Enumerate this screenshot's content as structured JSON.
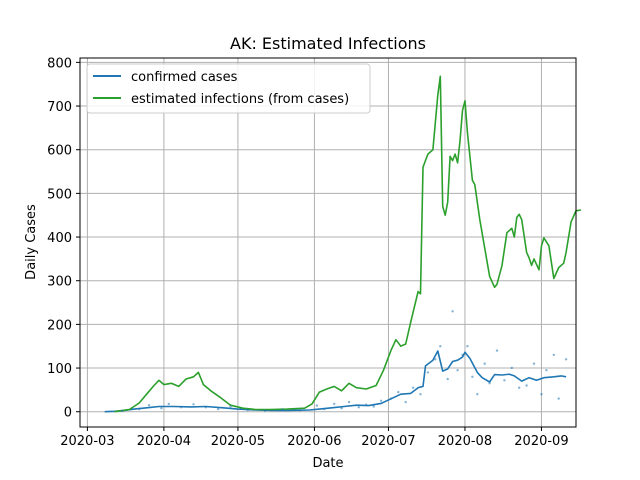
{
  "chart_data": {
    "type": "line",
    "title": "AK: Estimated Infections",
    "xlabel": "Date",
    "ylabel": "Daily Cases",
    "xlim": [
      "2020-02-27",
      "2020-09-15"
    ],
    "ylim": [
      -35,
      810
    ],
    "grid": true,
    "legend_position": "top-left",
    "x_ticks": [
      "2020-03-01",
      "2020-04-01",
      "2020-05-01",
      "2020-06-01",
      "2020-07-01",
      "2020-08-01",
      "2020-09-01"
    ],
    "x_tick_labels": [
      "2020-03",
      "2020-04",
      "2020-05",
      "2020-06",
      "2020-07",
      "2020-08",
      "2020-09"
    ],
    "y_ticks": [
      0,
      100,
      200,
      300,
      400,
      500,
      600,
      700,
      800
    ],
    "series": [
      {
        "name": "confirmed cases",
        "color": "#1f77b4",
        "style": "line",
        "points": [
          [
            "2020-03-08",
            0
          ],
          [
            "2020-03-12",
            1
          ],
          [
            "2020-03-16",
            3
          ],
          [
            "2020-03-20",
            6
          ],
          [
            "2020-03-25",
            9
          ],
          [
            "2020-03-30",
            12
          ],
          [
            "2020-04-05",
            12
          ],
          [
            "2020-04-12",
            11
          ],
          [
            "2020-04-18",
            12
          ],
          [
            "2020-04-25",
            9
          ],
          [
            "2020-05-01",
            6
          ],
          [
            "2020-05-08",
            4
          ],
          [
            "2020-05-15",
            3
          ],
          [
            "2020-05-22",
            3
          ],
          [
            "2020-05-30",
            4
          ],
          [
            "2020-06-03",
            6
          ],
          [
            "2020-06-08",
            9
          ],
          [
            "2020-06-13",
            12
          ],
          [
            "2020-06-18",
            15
          ],
          [
            "2020-06-23",
            14
          ],
          [
            "2020-06-28",
            19
          ],
          [
            "2020-07-03",
            32
          ],
          [
            "2020-07-06",
            40
          ],
          [
            "2020-07-10",
            42
          ],
          [
            "2020-07-13",
            55
          ],
          [
            "2020-07-15",
            58
          ],
          [
            "2020-07-16",
            105
          ],
          [
            "2020-07-19",
            118
          ],
          [
            "2020-07-21",
            139
          ],
          [
            "2020-07-23",
            93
          ],
          [
            "2020-07-25",
            98
          ],
          [
            "2020-07-27",
            115
          ],
          [
            "2020-07-29",
            118
          ],
          [
            "2020-07-31",
            125
          ],
          [
            "2020-08-01",
            136
          ],
          [
            "2020-08-03",
            122
          ],
          [
            "2020-08-06",
            90
          ],
          [
            "2020-08-08",
            78
          ],
          [
            "2020-08-11",
            68
          ],
          [
            "2020-08-13",
            85
          ],
          [
            "2020-08-16",
            84
          ],
          [
            "2020-08-19",
            86
          ],
          [
            "2020-08-21",
            82
          ],
          [
            "2020-08-24",
            70
          ],
          [
            "2020-08-27",
            78
          ],
          [
            "2020-08-30",
            72
          ],
          [
            "2020-09-02",
            78
          ],
          [
            "2020-09-06",
            80
          ],
          [
            "2020-09-09",
            82
          ],
          [
            "2020-09-11",
            80
          ]
        ]
      },
      {
        "name": "estimated infections (from cases)",
        "color": "#2ca02c",
        "style": "line",
        "points": [
          [
            "2020-03-12",
            0
          ],
          [
            "2020-03-18",
            5
          ],
          [
            "2020-03-22",
            20
          ],
          [
            "2020-03-25",
            40
          ],
          [
            "2020-03-28",
            60
          ],
          [
            "2020-03-30",
            72
          ],
          [
            "2020-04-01",
            62
          ],
          [
            "2020-04-04",
            65
          ],
          [
            "2020-04-07",
            58
          ],
          [
            "2020-04-10",
            75
          ],
          [
            "2020-04-13",
            80
          ],
          [
            "2020-04-15",
            90
          ],
          [
            "2020-04-17",
            62
          ],
          [
            "2020-04-20",
            48
          ],
          [
            "2020-04-24",
            32
          ],
          [
            "2020-04-28",
            15
          ],
          [
            "2020-05-03",
            8
          ],
          [
            "2020-05-08",
            5
          ],
          [
            "2020-05-14",
            5
          ],
          [
            "2020-05-21",
            6
          ],
          [
            "2020-05-28",
            8
          ],
          [
            "2020-05-31",
            18
          ],
          [
            "2020-06-03",
            45
          ],
          [
            "2020-06-06",
            52
          ],
          [
            "2020-06-09",
            58
          ],
          [
            "2020-06-12",
            48
          ],
          [
            "2020-06-15",
            65
          ],
          [
            "2020-06-18",
            55
          ],
          [
            "2020-06-22",
            52
          ],
          [
            "2020-06-26",
            60
          ],
          [
            "2020-06-29",
            95
          ],
          [
            "2020-07-02",
            140
          ],
          [
            "2020-07-04",
            165
          ],
          [
            "2020-07-06",
            150
          ],
          [
            "2020-07-08",
            155
          ],
          [
            "2020-07-10",
            205
          ],
          [
            "2020-07-13",
            275
          ],
          [
            "2020-07-14",
            270
          ],
          [
            "2020-07-15",
            560
          ],
          [
            "2020-07-17",
            590
          ],
          [
            "2020-07-19",
            600
          ],
          [
            "2020-07-21",
            725
          ],
          [
            "2020-07-22",
            768
          ],
          [
            "2020-07-23",
            470
          ],
          [
            "2020-07-24",
            450
          ],
          [
            "2020-07-25",
            480
          ],
          [
            "2020-07-26",
            585
          ],
          [
            "2020-07-27",
            575
          ],
          [
            "2020-07-28",
            590
          ],
          [
            "2020-07-29",
            570
          ],
          [
            "2020-07-30",
            620
          ],
          [
            "2020-07-31",
            690
          ],
          [
            "2020-08-01",
            712
          ],
          [
            "2020-08-02",
            640
          ],
          [
            "2020-08-04",
            530
          ],
          [
            "2020-08-05",
            520
          ],
          [
            "2020-08-07",
            440
          ],
          [
            "2020-08-09",
            375
          ],
          [
            "2020-08-11",
            310
          ],
          [
            "2020-08-13",
            285
          ],
          [
            "2020-08-14",
            292
          ],
          [
            "2020-08-16",
            335
          ],
          [
            "2020-08-18",
            410
          ],
          [
            "2020-08-20",
            420
          ],
          [
            "2020-08-21",
            400
          ],
          [
            "2020-08-22",
            445
          ],
          [
            "2020-08-23",
            452
          ],
          [
            "2020-08-24",
            440
          ],
          [
            "2020-08-26",
            365
          ],
          [
            "2020-08-27",
            352
          ],
          [
            "2020-08-28",
            335
          ],
          [
            "2020-08-29",
            350
          ],
          [
            "2020-08-31",
            325
          ],
          [
            "2020-09-01",
            380
          ],
          [
            "2020-09-02",
            398
          ],
          [
            "2020-09-04",
            380
          ],
          [
            "2020-09-06",
            305
          ],
          [
            "2020-09-08",
            330
          ],
          [
            "2020-09-10",
            340
          ],
          [
            "2020-09-11",
            365
          ],
          [
            "2020-09-13",
            435
          ],
          [
            "2020-09-15",
            460
          ],
          [
            "2020-09-17",
            462
          ]
        ]
      },
      {
        "name": "",
        "color": "#1f77b4",
        "style": "scatter",
        "points": [
          [
            "2020-03-15",
            2
          ],
          [
            "2020-03-22",
            6
          ],
          [
            "2020-03-26",
            15
          ],
          [
            "2020-03-31",
            8
          ],
          [
            "2020-04-03",
            18
          ],
          [
            "2020-04-08",
            10
          ],
          [
            "2020-04-13",
            17
          ],
          [
            "2020-04-18",
            10
          ],
          [
            "2020-04-23",
            6
          ],
          [
            "2020-04-28",
            12
          ],
          [
            "2020-05-05",
            4
          ],
          [
            "2020-05-12",
            2
          ],
          [
            "2020-05-19",
            5
          ],
          [
            "2020-05-26",
            3
          ],
          [
            "2020-06-02",
            14
          ],
          [
            "2020-06-05",
            6
          ],
          [
            "2020-06-09",
            18
          ],
          [
            "2020-06-12",
            8
          ],
          [
            "2020-06-15",
            22
          ],
          [
            "2020-06-19",
            10
          ],
          [
            "2020-06-22",
            16
          ],
          [
            "2020-06-25",
            12
          ],
          [
            "2020-06-28",
            25
          ],
          [
            "2020-07-02",
            30
          ],
          [
            "2020-07-05",
            45
          ],
          [
            "2020-07-08",
            22
          ],
          [
            "2020-07-11",
            55
          ],
          [
            "2020-07-14",
            40
          ],
          [
            "2020-07-17",
            90
          ],
          [
            "2020-07-20",
            120
          ],
          [
            "2020-07-22",
            150
          ],
          [
            "2020-07-25",
            75
          ],
          [
            "2020-07-27",
            230
          ],
          [
            "2020-07-29",
            95
          ],
          [
            "2020-07-31",
            130
          ],
          [
            "2020-08-02",
            150
          ],
          [
            "2020-08-04",
            80
          ],
          [
            "2020-08-06",
            40
          ],
          [
            "2020-08-09",
            110
          ],
          [
            "2020-08-11",
            65
          ],
          [
            "2020-08-14",
            140
          ],
          [
            "2020-08-17",
            72
          ],
          [
            "2020-08-20",
            100
          ],
          [
            "2020-08-23",
            55
          ],
          [
            "2020-08-26",
            60
          ],
          [
            "2020-08-29",
            110
          ],
          [
            "2020-09-01",
            40
          ],
          [
            "2020-09-03",
            95
          ],
          [
            "2020-09-06",
            130
          ],
          [
            "2020-09-08",
            30
          ],
          [
            "2020-09-11",
            120
          ]
        ]
      }
    ]
  }
}
